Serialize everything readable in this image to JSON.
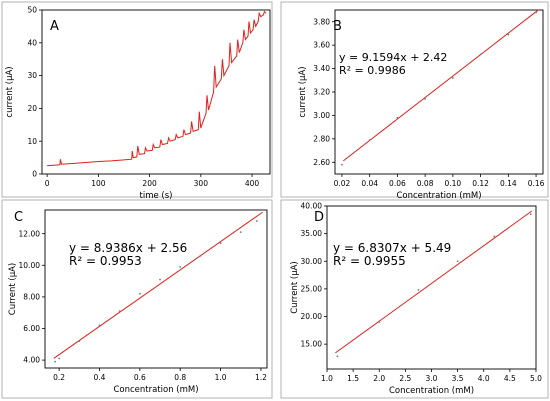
{
  "chart_data": [
    {
      "panel": "A",
      "type": "line",
      "xlabel": "time (s)",
      "ylabel": "current (µA)",
      "xlim": [
        -10,
        435
      ],
      "ylim": [
        0,
        50
      ],
      "x_ticks": [
        0,
        100,
        200,
        300,
        400
      ],
      "y_ticks": [
        0,
        10,
        20,
        30,
        40,
        50
      ],
      "x": [
        0,
        25,
        26,
        28,
        50,
        75,
        100,
        125,
        150,
        165,
        166,
        168,
        175,
        177,
        180,
        190,
        192,
        195,
        205,
        207,
        210,
        220,
        222,
        225,
        235,
        237,
        240,
        250,
        252,
        255,
        265,
        267,
        270,
        280,
        282,
        285,
        295,
        297,
        300,
        310,
        312,
        315,
        325,
        327,
        330,
        340,
        342,
        345,
        355,
        357,
        360,
        370,
        372,
        375,
        382,
        384,
        387,
        392,
        394,
        397,
        402,
        404,
        407,
        412,
        414,
        417,
        422,
        424,
        427
      ],
      "y": [
        2.5,
        2.8,
        4.5,
        3.0,
        3.2,
        3.5,
        3.8,
        4.0,
        4.3,
        4.5,
        7.0,
        5.0,
        5.2,
        8.5,
        6.0,
        6.2,
        8.0,
        7.0,
        7.2,
        9.0,
        8.0,
        8.2,
        10.5,
        9.0,
        9.3,
        11.0,
        10.0,
        10.5,
        12.0,
        11.0,
        11.5,
        13.5,
        12.0,
        12.5,
        16.0,
        13.0,
        13.5,
        19.0,
        14.0,
        18.5,
        24.0,
        19.5,
        25.0,
        33.0,
        26.5,
        29.0,
        35.0,
        30.0,
        33.0,
        40.0,
        34.0,
        36.0,
        41.0,
        37.0,
        40.0,
        44.0,
        41.0,
        42.0,
        46.5,
        43.0,
        44.0,
        47.0,
        45.0,
        46.5,
        49.0,
        48.0,
        48.5,
        49.5,
        49.0
      ]
    },
    {
      "panel": "B",
      "type": "scatter",
      "xlabel": "Concentration (mM)",
      "ylabel": "current (µA)",
      "equation": "y = 9.1594x + 2.42",
      "r2": "R² = 0.9986",
      "xlim": [
        0.015,
        0.165
      ],
      "ylim": [
        2.5,
        3.9
      ],
      "x_ticks": [
        0.02,
        0.04,
        0.06,
        0.08,
        0.1,
        0.12,
        0.14,
        0.16
      ],
      "y_ticks": [
        2.6,
        2.8,
        3.0,
        3.2,
        3.4,
        3.6,
        3.8
      ],
      "x": [
        0.02,
        0.04,
        0.06,
        0.08,
        0.1,
        0.12,
        0.14,
        0.16
      ],
      "y": [
        2.58,
        2.79,
        2.98,
        3.14,
        3.32,
        3.52,
        3.69,
        3.88
      ],
      "fit": {
        "slope": 9.1594,
        "intercept": 2.42
      }
    },
    {
      "panel": "C",
      "type": "scatter",
      "xlabel": "Concentration (mM)",
      "ylabel": "Current (µA)",
      "equation": "y = 8.9386x + 2.56",
      "r2": "R² = 0.9953",
      "xlim": [
        0.13,
        1.23
      ],
      "ylim": [
        3.5,
        13.5
      ],
      "x_ticks": [
        0.2,
        0.4,
        0.6,
        0.8,
        1.0,
        1.2
      ],
      "y_ticks": [
        4.0,
        6.0,
        8.0,
        10.0,
        12.0
      ],
      "x": [
        0.18,
        0.2,
        0.3,
        0.4,
        0.5,
        0.6,
        0.7,
        0.8,
        0.9,
        1.0,
        1.1,
        1.18
      ],
      "y": [
        3.9,
        4.1,
        5.2,
        6.2,
        7.1,
        8.2,
        9.1,
        9.9,
        10.6,
        11.4,
        12.1,
        12.8
      ],
      "fit": {
        "slope": 8.9386,
        "intercept": 2.56
      }
    },
    {
      "panel": "D",
      "type": "scatter",
      "xlabel": "Concentration (mM)",
      "ylabel": "Current (µA)",
      "equation": "y = 6.8307x + 5.49",
      "r2": "R² = 0.9955",
      "xlim": [
        1.0,
        5.0
      ],
      "ylim": [
        10.5,
        40.0
      ],
      "x_ticks": [
        1.0,
        1.5,
        2.0,
        2.5,
        3.0,
        3.5,
        4.0,
        4.5,
        5.0
      ],
      "y_ticks": [
        15.0,
        20.0,
        25.0,
        30.0,
        35.0,
        40.0
      ],
      "x": [
        1.2,
        2.0,
        2.75,
        3.5,
        4.2,
        4.9
      ],
      "y": [
        12.8,
        19.0,
        24.8,
        30.0,
        34.5,
        38.5
      ],
      "fit": {
        "slope": 6.8307,
        "intercept": 5.49
      }
    }
  ],
  "colors": {
    "series": "#e0201b",
    "axis": "#000000",
    "border": "#a0a0a0"
  }
}
